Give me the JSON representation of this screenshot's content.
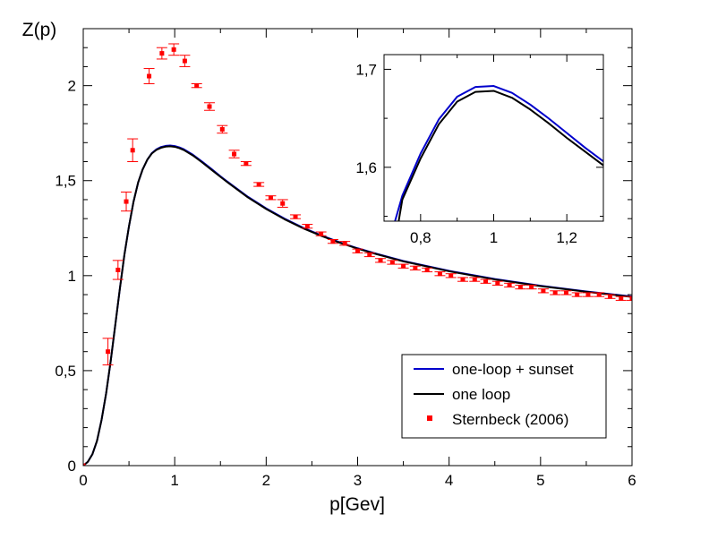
{
  "chart_data": [
    {
      "type": "line",
      "title": "",
      "xlabel": "p[Gev]",
      "ylabel": "Z(p)",
      "xlim": [
        0,
        6
      ],
      "ylim": [
        0,
        2.3
      ],
      "x_ticks": [
        0,
        1,
        2,
        3,
        4,
        5,
        6
      ],
      "x_tick_labels": [
        "0",
        "1",
        "2",
        "3",
        "4",
        "5",
        "6"
      ],
      "y_ticks": [
        0,
        0.5,
        1,
        1.5,
        2
      ],
      "y_tick_labels": [
        "0",
        "0,5",
        "1",
        "1,5",
        "2"
      ],
      "grid": false,
      "legend_position": "bottom-right",
      "series": [
        {
          "name": "one-loop + sunset",
          "kind": "line",
          "color": "#0000cc",
          "x": [
            0,
            0.05,
            0.1,
            0.15,
            0.2,
            0.25,
            0.3,
            0.35,
            0.4,
            0.45,
            0.5,
            0.55,
            0.6,
            0.65,
            0.7,
            0.75,
            0.8,
            0.85,
            0.9,
            0.95,
            1.0,
            1.05,
            1.1,
            1.2,
            1.3,
            1.4,
            1.5,
            1.6,
            1.8,
            2.0,
            2.2,
            2.4,
            2.6,
            2.8,
            3.0,
            3.2,
            3.5,
            4.0,
            4.5,
            5.0,
            5.5,
            6.0
          ],
          "y": [
            0,
            0.02,
            0.06,
            0.13,
            0.24,
            0.38,
            0.55,
            0.74,
            0.93,
            1.11,
            1.26,
            1.39,
            1.49,
            1.56,
            1.61,
            1.645,
            1.665,
            1.677,
            1.683,
            1.685,
            1.682,
            1.675,
            1.665,
            1.636,
            1.6,
            1.562,
            1.523,
            1.486,
            1.415,
            1.354,
            1.3,
            1.253,
            1.212,
            1.176,
            1.144,
            1.116,
            1.077,
            1.025,
            0.982,
            0.947,
            0.917,
            0.89
          ]
        },
        {
          "name": "one loop",
          "kind": "line",
          "color": "#000000",
          "x": [
            0,
            0.05,
            0.1,
            0.15,
            0.2,
            0.25,
            0.3,
            0.35,
            0.4,
            0.45,
            0.5,
            0.55,
            0.6,
            0.65,
            0.7,
            0.75,
            0.8,
            0.85,
            0.9,
            0.95,
            1.0,
            1.05,
            1.1,
            1.2,
            1.3,
            1.4,
            1.5,
            1.6,
            1.8,
            2.0,
            2.2,
            2.4,
            2.6,
            2.8,
            3.0,
            3.2,
            3.5,
            4.0,
            4.5,
            5.0,
            5.5,
            6.0
          ],
          "y": [
            0,
            0.02,
            0.06,
            0.13,
            0.24,
            0.38,
            0.55,
            0.74,
            0.93,
            1.11,
            1.26,
            1.39,
            1.49,
            1.56,
            1.61,
            1.643,
            1.662,
            1.673,
            1.679,
            1.681,
            1.678,
            1.671,
            1.661,
            1.632,
            1.596,
            1.558,
            1.52,
            1.483,
            1.412,
            1.351,
            1.297,
            1.25,
            1.21,
            1.174,
            1.142,
            1.114,
            1.075,
            1.023,
            0.98,
            0.945,
            0.915,
            0.888
          ]
        },
        {
          "name": "Sternbeck (2006)",
          "kind": "scatter",
          "color": "#ff0000",
          "x": [
            0,
            0.27,
            0.38,
            0.47,
            0.54,
            0.72,
            0.86,
            0.99,
            1.11,
            1.24,
            1.38,
            1.52,
            1.65,
            1.78,
            1.92,
            2.05,
            2.18,
            2.32,
            2.45,
            2.6,
            2.73,
            2.86,
            3.0,
            3.13,
            3.25,
            3.38,
            3.5,
            3.63,
            3.76,
            3.9,
            4.02,
            4.15,
            4.28,
            4.4,
            4.53,
            4.66,
            4.78,
            4.9,
            5.03,
            5.16,
            5.28,
            5.4,
            5.52,
            5.64,
            5.76,
            5.88,
            6.0
          ],
          "y": [
            0,
            0.6,
            1.03,
            1.39,
            1.66,
            2.05,
            2.17,
            2.19,
            2.13,
            2.0,
            1.89,
            1.77,
            1.64,
            1.59,
            1.48,
            1.41,
            1.38,
            1.31,
            1.26,
            1.22,
            1.18,
            1.17,
            1.13,
            1.11,
            1.08,
            1.07,
            1.05,
            1.04,
            1.03,
            1.01,
            1.0,
            0.98,
            0.98,
            0.97,
            0.96,
            0.95,
            0.94,
            0.94,
            0.92,
            0.91,
            0.91,
            0.9,
            0.9,
            0.9,
            0.89,
            0.88,
            0.88
          ],
          "err": [
            0,
            0.07,
            0.05,
            0.05,
            0.06,
            0.04,
            0.03,
            0.03,
            0.03,
            0.01,
            0.02,
            0.02,
            0.02,
            0.01,
            0.01,
            0.01,
            0.02,
            0.01,
            0.01,
            0.01,
            0.01,
            0.01,
            0.01,
            0.01,
            0.01,
            0.01,
            0.01,
            0.01,
            0.01,
            0.01,
            0.01,
            0.01,
            0.01,
            0.01,
            0.01,
            0.01,
            0.01,
            0.01,
            0.01,
            0.01,
            0.01,
            0.01,
            0.01,
            0.01,
            0.01,
            0.01,
            0.01
          ]
        }
      ]
    },
    {
      "type": "line",
      "title": "",
      "subplot": "inset",
      "xlabel": "",
      "ylabel": "",
      "xlim": [
        0.7,
        1.3
      ],
      "ylim": [
        1.545,
        1.715
      ],
      "x_ticks": [
        0.8,
        1,
        1.2
      ],
      "x_tick_labels": [
        "0,8",
        "1",
        "1,2"
      ],
      "y_ticks": [
        1.6,
        1.7
      ],
      "y_tick_labels": [
        "1,6",
        "1,7"
      ],
      "grid": false,
      "series": [
        {
          "name": "one-loop + sunset",
          "color": "#0000cc",
          "x": [
            0.7,
            0.73,
            0.75,
            0.8,
            0.85,
            0.9,
            0.95,
            1.0,
            1.05,
            1.1,
            1.15,
            1.2,
            1.25,
            1.3
          ],
          "y": [
            1.5,
            1.545,
            1.571,
            1.614,
            1.649,
            1.672,
            1.682,
            1.683,
            1.676,
            1.664,
            1.65,
            1.635,
            1.62,
            1.606
          ]
        },
        {
          "name": "one loop",
          "color": "#000000",
          "x": [
            0.7,
            0.74,
            0.75,
            0.8,
            0.85,
            0.9,
            0.95,
            1.0,
            1.05,
            1.1,
            1.15,
            1.2,
            1.25,
            1.3
          ],
          "y": [
            1.5,
            1.545,
            1.567,
            1.609,
            1.644,
            1.667,
            1.677,
            1.678,
            1.671,
            1.659,
            1.645,
            1.63,
            1.616,
            1.602
          ]
        }
      ]
    }
  ]
}
